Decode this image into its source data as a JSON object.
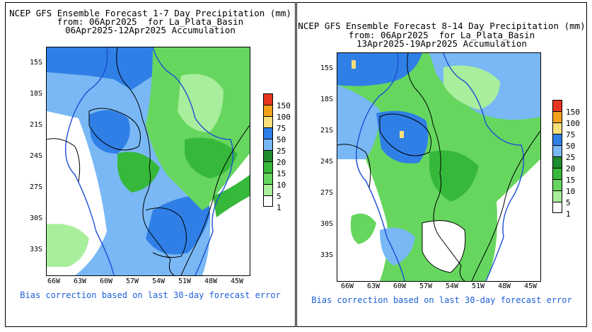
{
  "panels": [
    {
      "title_line1": "NCEP GFS Ensemble Forecast 1-7 Day Precipitation (mm)",
      "title_line2": "from: 06Apr2025  for La_Plata_Basin",
      "title_line3": "06Apr2025-12Apr2025 Accumulation",
      "lat_ticks": [
        "15S",
        "18S",
        "21S",
        "24S",
        "27S",
        "30S",
        "33S"
      ],
      "lon_ticks": [
        "66W",
        "63W",
        "60W",
        "57W",
        "54W",
        "51W",
        "48W",
        "45W"
      ],
      "footer": "Bias correction based on last 30-day forecast error"
    },
    {
      "title_line1": "NCEP GFS Ensemble Forecast 8-14 Day Precipitation (mm)",
      "title_line2": "from: 06Apr2025  for La_Plata_Basin",
      "title_line3": "13Apr2025-19Apr2025 Accumulation",
      "lat_ticks": [
        "15S",
        "18S",
        "21S",
        "24S",
        "27S",
        "30S",
        "33S"
      ],
      "lon_ticks": [
        "66W",
        "63W",
        "60W",
        "57W",
        "54W",
        "51W",
        "48W",
        "45W"
      ],
      "footer": "Bias correction based on last 30-day forecast error"
    }
  ],
  "legend": {
    "labels": [
      "150",
      "100",
      "75",
      "50",
      "25",
      "20",
      "15",
      "10",
      "5",
      "1"
    ],
    "colors": [
      "#e8351f",
      "#f4a11e",
      "#f7e07c",
      "#2f7fe6",
      "#79b8f5",
      "#1e8c2e",
      "#36b83b",
      "#66d65f",
      "#a9ee9c",
      "#ffffff"
    ]
  }
}
